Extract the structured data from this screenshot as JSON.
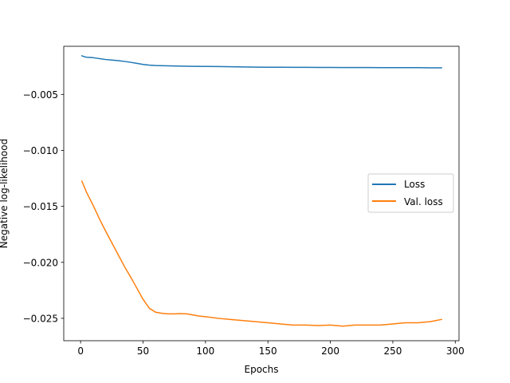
{
  "chart_data": {
    "type": "line",
    "title": "",
    "xlabel": "Epochs",
    "ylabel": "Negative log-likelihood",
    "xlim": [
      -13.5,
      303
    ],
    "ylim": [
      -0.027,
      -0.0007
    ],
    "xticks": [
      0,
      50,
      100,
      150,
      200,
      250,
      300
    ],
    "xtick_labels": [
      "0",
      "50",
      "100",
      "150",
      "200",
      "250",
      "300"
    ],
    "yticks": [
      -0.005,
      -0.01,
      -0.015,
      -0.02,
      -0.025
    ],
    "ytick_labels": [
      "−0.005",
      "−0.010",
      "−0.015",
      "−0.020",
      "−0.025"
    ],
    "grid": false,
    "legend_position": "right",
    "series": [
      {
        "name": "Loss",
        "color": "#1f77b4",
        "x": [
          1,
          3,
          5,
          10,
          15,
          20,
          25,
          30,
          35,
          40,
          45,
          50,
          55,
          60,
          70,
          80,
          90,
          100,
          110,
          120,
          130,
          140,
          150,
          160,
          170,
          180,
          190,
          200,
          210,
          220,
          230,
          240,
          250,
          260,
          270,
          280,
          289
        ],
        "y": [
          -0.00155,
          -0.00163,
          -0.00168,
          -0.00172,
          -0.0018,
          -0.00188,
          -0.00193,
          -0.00198,
          -0.00205,
          -0.00213,
          -0.00222,
          -0.00232,
          -0.00238,
          -0.00242,
          -0.00245,
          -0.00247,
          -0.00249,
          -0.0025,
          -0.00251,
          -0.00253,
          -0.00254,
          -0.00256,
          -0.00257,
          -0.00257,
          -0.00258,
          -0.00258,
          -0.00259,
          -0.00259,
          -0.0026,
          -0.0026,
          -0.0026,
          -0.00261,
          -0.00261,
          -0.00261,
          -0.00261,
          -0.00262,
          -0.00262
        ]
      },
      {
        "name": "Val. loss",
        "color": "#ff7f0e",
        "x": [
          1,
          5,
          10,
          15,
          20,
          25,
          30,
          35,
          40,
          45,
          50,
          55,
          60,
          65,
          70,
          75,
          80,
          85,
          90,
          95,
          100,
          110,
          120,
          130,
          140,
          150,
          160,
          170,
          180,
          190,
          200,
          210,
          220,
          230,
          240,
          250,
          260,
          270,
          280,
          289
        ],
        "y": [
          -0.01275,
          -0.0138,
          -0.0149,
          -0.0161,
          -0.0172,
          -0.01825,
          -0.0193,
          -0.02035,
          -0.0213,
          -0.0223,
          -0.0233,
          -0.0241,
          -0.02445,
          -0.02455,
          -0.0246,
          -0.0246,
          -0.02458,
          -0.0246,
          -0.0247,
          -0.0248,
          -0.02485,
          -0.025,
          -0.0251,
          -0.0252,
          -0.0253,
          -0.0254,
          -0.0255,
          -0.0256,
          -0.0256,
          -0.02565,
          -0.0256,
          -0.0257,
          -0.0256,
          -0.0256,
          -0.0256,
          -0.0255,
          -0.0254,
          -0.0254,
          -0.0253,
          -0.0251
        ]
      }
    ]
  }
}
